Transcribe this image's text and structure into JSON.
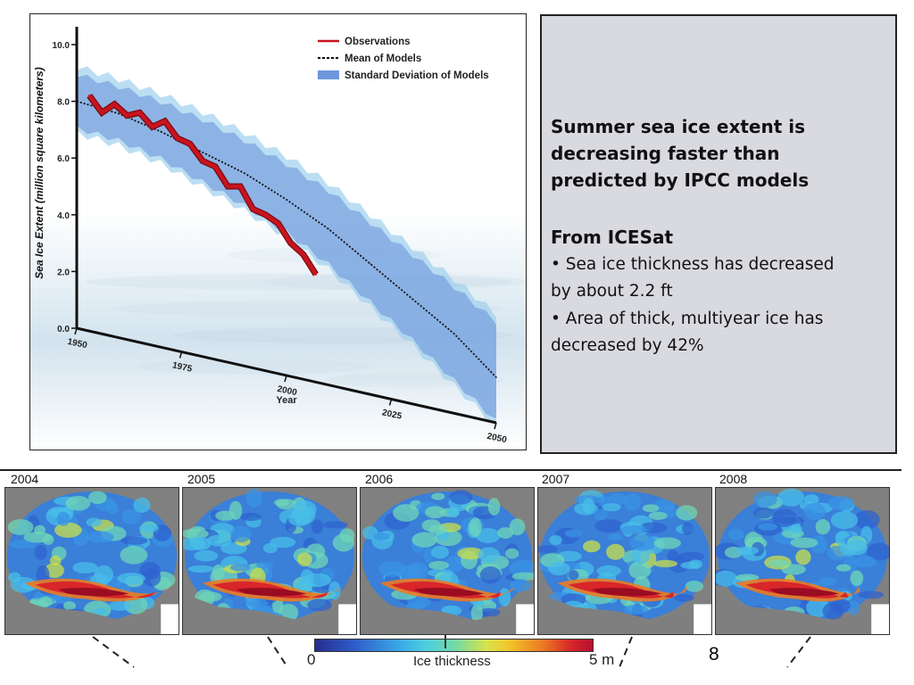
{
  "chart_data": {
    "type": "line",
    "xlabel": "Year",
    "ylabel": "Sea Ice Extent (million square kilometers)",
    "xlim": [
      1950,
      2050
    ],
    "ylim": [
      0,
      10
    ],
    "x_ticks": [
      "1950",
      "1975",
      "2000",
      "2025",
      "2050"
    ],
    "y_ticks": [
      "0.0",
      "2.0",
      "4.0",
      "6.0",
      "8.0",
      "10.0"
    ],
    "legend_position": "top-right",
    "legend": [
      {
        "label": "Observations",
        "style": "solid-line",
        "color": "#c8141e"
      },
      {
        "label": "Mean of Models",
        "style": "dotted-line",
        "color": "#111111"
      },
      {
        "label": "Standard Deviation of Models",
        "style": "band",
        "color": "#6e96dc"
      }
    ],
    "series": [
      {
        "name": "Observations",
        "color": "#c8141e",
        "x": [
          1953,
          1956,
          1959,
          1962,
          1965,
          1968,
          1971,
          1974,
          1977,
          1980,
          1983,
          1986,
          1989,
          1992,
          1995,
          1998,
          2001,
          2004,
          2007
        ],
        "y": [
          8.3,
          7.8,
          8.2,
          7.9,
          8.1,
          7.7,
          8.0,
          7.5,
          7.4,
          6.9,
          6.8,
          6.2,
          6.3,
          5.6,
          5.5,
          5.3,
          4.7,
          4.4,
          3.8
        ]
      },
      {
        "name": "Mean of Models",
        "color": "#111111",
        "x": [
          1950,
          1960,
          1970,
          1980,
          1990,
          2000,
          2010,
          2020,
          2030,
          2040,
          2050
        ],
        "y": [
          8.0,
          7.9,
          7.6,
          7.2,
          6.8,
          6.2,
          5.5,
          4.6,
          3.7,
          2.8,
          1.6
        ]
      },
      {
        "name": "Standard Deviation of Models",
        "color": "#6e96dc",
        "x": [
          1950,
          1960,
          1970,
          1980,
          1990,
          2000,
          2010,
          2020,
          2030,
          2040,
          2050
        ],
        "upper": [
          9.1,
          9.0,
          8.8,
          8.5,
          8.1,
          7.6,
          7.0,
          6.2,
          5.4,
          4.6,
          3.7
        ],
        "lower": [
          7.0,
          6.9,
          6.6,
          6.1,
          5.6,
          5.0,
          4.2,
          3.2,
          2.2,
          1.1,
          0.0
        ]
      }
    ]
  },
  "text_panel": {
    "headline_lines": [
      "Summer sea ice extent is",
      "decreasing faster than",
      "predicted by IPCC models"
    ],
    "subhead": "From ICESat",
    "bullets": [
      {
        "line1": "•  Sea ice thickness has  decreased",
        "line2": "by about 2.2 ft"
      },
      {
        "line1": "•  Area of thick, multiyear ice has",
        "line2": "decreased by 42%"
      }
    ]
  },
  "maps": {
    "years": [
      "2004",
      "2005",
      "2006",
      "2007",
      "2008"
    ],
    "colorbar": {
      "min_label": "0",
      "max_label": "5 m",
      "title": "Ice thickness"
    }
  },
  "slide_number": "8"
}
